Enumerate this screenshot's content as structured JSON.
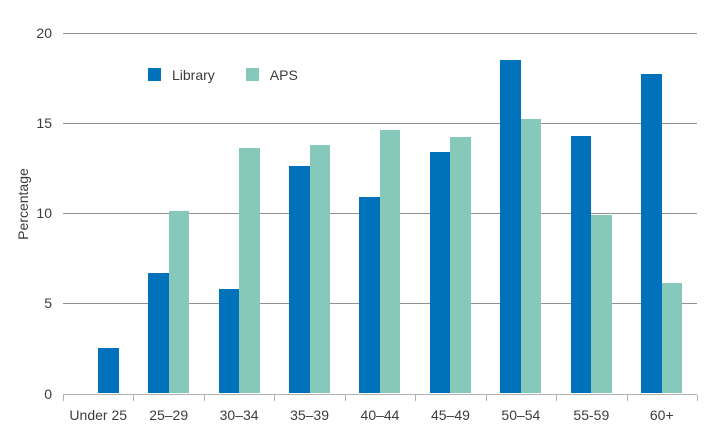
{
  "chart_data": {
    "type": "bar",
    "title": "",
    "xlabel": "",
    "ylabel": "Percentage",
    "ylim": [
      0,
      20
    ],
    "y_ticks": [
      0,
      5,
      10,
      15,
      20
    ],
    "grid": true,
    "legend_position": "top-left-inside",
    "categories": [
      "Under 25",
      "25–29",
      "30–34",
      "35–39",
      "40–44",
      "45–49",
      "50–54",
      "55-59",
      "60+"
    ],
    "series": [
      {
        "name": "Library",
        "color": "#0072bc",
        "values": [
          2.5,
          6.7,
          5.8,
          12.6,
          10.9,
          13.4,
          18.5,
          14.3,
          17.7
        ]
      },
      {
        "name": "APS",
        "color": "#86c8ba",
        "values": [
          null,
          10.1,
          13.6,
          13.8,
          14.6,
          14.2,
          15.2,
          9.9,
          6.1
        ]
      }
    ]
  },
  "colors": {
    "background": "#ffffff",
    "gridline": "#919191",
    "axis_line": "#b3b3b3",
    "text": "#3c3c3c"
  }
}
